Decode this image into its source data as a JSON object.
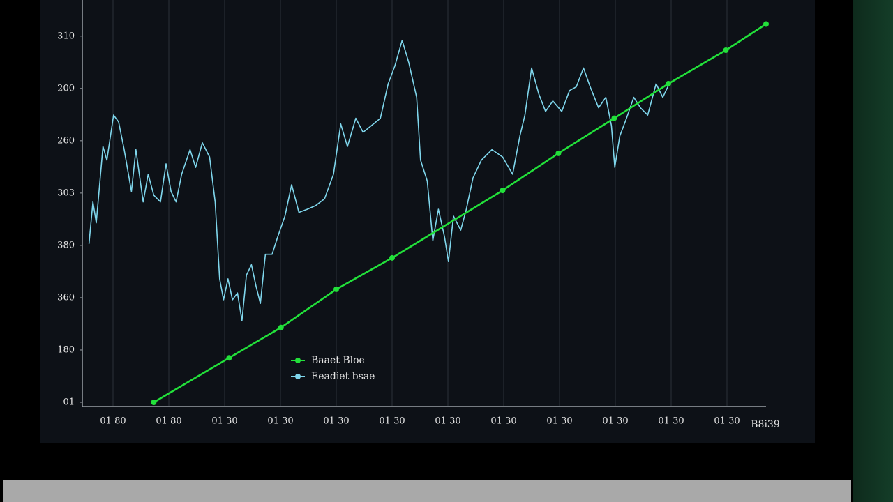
{
  "chart_data": {
    "type": "line",
    "x_label": "B8i39",
    "xlim": [
      -0.55,
      11.7
    ],
    "xticks": [
      {
        "value": 0,
        "label": "01 80"
      },
      {
        "value": 1,
        "label": "01 80"
      },
      {
        "value": 2,
        "label": "01 30"
      },
      {
        "value": 3,
        "label": "01 30"
      },
      {
        "value": 4,
        "label": "01 30"
      },
      {
        "value": 5,
        "label": "01 30"
      },
      {
        "value": 6,
        "label": "01 30"
      },
      {
        "value": 7,
        "label": "01 30"
      },
      {
        "value": 8,
        "label": "01 30"
      },
      {
        "value": 9,
        "label": "01 30"
      },
      {
        "value": 10,
        "label": "01 30"
      },
      {
        "value": 11,
        "label": "01 30"
      }
    ],
    "ylim": [
      0,
      7.69
    ],
    "yticks": [
      {
        "value": 0,
        "label": "01"
      },
      {
        "value": 1,
        "label": "180"
      },
      {
        "value": 2,
        "label": "360"
      },
      {
        "value": 3,
        "label": "380"
      },
      {
        "value": 4,
        "label": "303"
      },
      {
        "value": 5,
        "label": "260"
      },
      {
        "value": 6,
        "label": "200"
      },
      {
        "value": 7,
        "label": "310"
      }
    ],
    "grid": "x",
    "series": [
      {
        "name": "Eeadiet bsae",
        "color": "#7fd6ec",
        "x": [
          -0.43,
          -0.36,
          -0.3,
          -0.18,
          -0.11,
          0.01,
          0.1,
          0.2,
          0.33,
          0.41,
          0.54,
          0.63,
          0.73,
          0.85,
          0.95,
          1.04,
          1.13,
          1.23,
          1.38,
          1.48,
          1.6,
          1.73,
          1.83,
          1.91,
          1.98,
          2.06,
          2.14,
          2.23,
          2.31,
          2.39,
          2.48,
          2.56,
          2.64,
          2.73,
          2.85,
          2.95,
          3.08,
          3.2,
          3.33,
          3.48,
          3.63,
          3.79,
          3.95,
          4.08,
          4.2,
          4.35,
          4.48,
          4.63,
          4.79,
          4.93,
          5.05,
          5.18,
          5.3,
          5.44,
          5.51,
          5.63,
          5.73,
          5.83,
          5.94,
          6.01,
          6.1,
          6.23,
          6.33,
          6.45,
          6.6,
          6.79,
          6.98,
          7.16,
          7.29,
          7.38,
          7.5,
          7.63,
          7.75,
          7.88,
          8.04,
          8.18,
          8.3,
          8.43,
          8.55,
          8.7,
          8.83,
          8.93,
          8.99,
          9.08,
          9.2,
          9.33,
          9.45,
          9.58,
          9.73,
          9.85,
          9.98
        ],
        "values": [
          3.03,
          3.83,
          3.43,
          4.89,
          4.63,
          5.49,
          5.36,
          4.83,
          4.03,
          4.83,
          3.83,
          4.36,
          3.96,
          3.83,
          4.56,
          4.03,
          3.83,
          4.36,
          4.83,
          4.49,
          4.96,
          4.69,
          3.83,
          2.36,
          1.96,
          2.36,
          1.96,
          2.09,
          1.56,
          2.43,
          2.63,
          2.23,
          1.89,
          2.83,
          2.83,
          3.16,
          3.56,
          4.16,
          3.63,
          3.69,
          3.76,
          3.89,
          4.36,
          5.32,
          4.89,
          5.43,
          5.16,
          5.29,
          5.43,
          6.09,
          6.43,
          6.92,
          6.49,
          5.83,
          4.63,
          4.23,
          3.09,
          3.69,
          3.16,
          2.69,
          3.56,
          3.29,
          3.69,
          4.29,
          4.63,
          4.83,
          4.69,
          4.36,
          5.09,
          5.49,
          6.39,
          5.89,
          5.56,
          5.76,
          5.56,
          5.96,
          6.03,
          6.39,
          6.03,
          5.63,
          5.83,
          5.29,
          4.49,
          5.09,
          5.43,
          5.83,
          5.63,
          5.49,
          6.09,
          5.83,
          6.12
        ]
      },
      {
        "name": "Baaet Bloe",
        "color": "#22e03a",
        "x": [
          0.73,
          2.08,
          3.01,
          4.0,
          5.0,
          6.98,
          7.98,
          8.98,
          9.95,
          10.98,
          11.7
        ],
        "values": [
          0.0,
          0.85,
          1.43,
          2.16,
          2.76,
          4.05,
          4.76,
          5.43,
          6.09,
          6.73,
          7.23
        ]
      }
    ]
  }
}
